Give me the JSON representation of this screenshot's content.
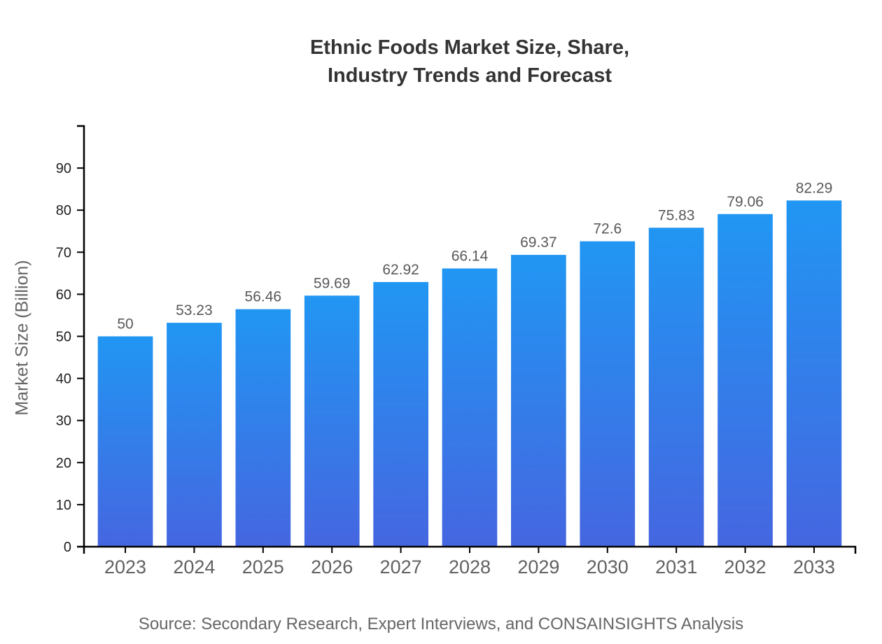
{
  "title": {
    "line1": "Ethnic Foods Market Size, Share,",
    "line2": "Industry Trends and Forecast"
  },
  "source": "Source: Secondary Research, Expert Interviews, and CONSAINSIGHTS Analysis",
  "chart_data": {
    "type": "bar",
    "title": "Ethnic Foods Market Size, Share, Industry Trends and Forecast",
    "categories": [
      "2023",
      "2024",
      "2025",
      "2026",
      "2027",
      "2028",
      "2029",
      "2030",
      "2031",
      "2032",
      "2033"
    ],
    "values": [
      50,
      53.23,
      56.46,
      59.69,
      62.92,
      66.14,
      69.37,
      72.6,
      75.83,
      79.06,
      82.29
    ],
    "xlabel": "",
    "ylabel": "Market Size (Billion)",
    "ylim": [
      0,
      100
    ],
    "yticks": [
      0,
      10,
      20,
      30,
      40,
      50,
      60,
      70,
      80,
      90
    ],
    "grid": false,
    "legend": false,
    "bar_padding": 0.2,
    "colors": {
      "bar_gradient_top": "#2196F3",
      "bar_gradient_bottom": "#4566E0",
      "axis": "#000000",
      "y_tick_label": "#1f1f1f",
      "x_tick_label": "#616161",
      "value_label": "#595959",
      "title": "#333333",
      "muted_text": "#666666"
    }
  }
}
